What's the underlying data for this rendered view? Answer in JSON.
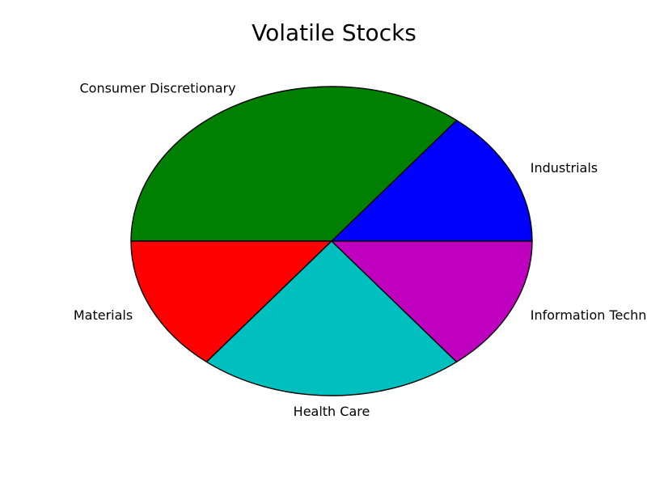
{
  "chart_data": {
    "type": "pie",
    "title": "Volatile Stocks",
    "start_angle_deg": 0,
    "direction": "counterclockwise",
    "slices": [
      {
        "label": "Industrials",
        "value": 1,
        "color": "#0000ff"
      },
      {
        "label": "Consumer Discretionary",
        "value": 2.5,
        "color": "#008000"
      },
      {
        "label": "Materials",
        "value": 1,
        "color": "#ff0000"
      },
      {
        "label": "Health Care",
        "value": 1.5,
        "color": "#00bfbf"
      },
      {
        "label": "Information Technology",
        "value": 1,
        "color": "#bf00bf"
      }
    ]
  }
}
